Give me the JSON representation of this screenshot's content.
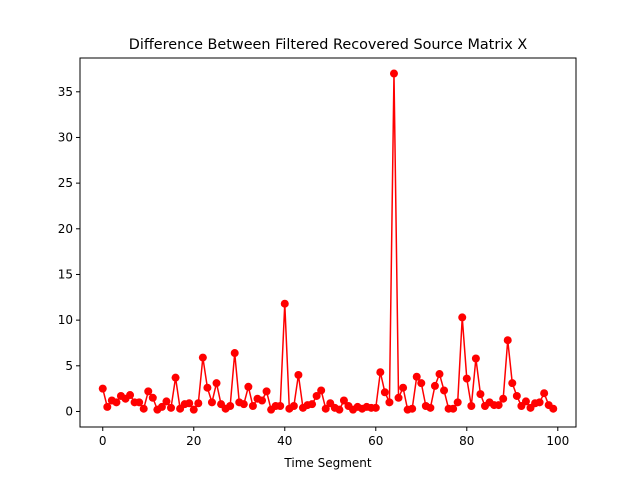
{
  "chart_data": {
    "type": "line",
    "title": "Difference Between Filtered Recovered Source Matrix X",
    "xlabel": "Time Segment",
    "ylabel": "",
    "xlim": [
      -5,
      104
    ],
    "ylim": [
      -1.7,
      38.7
    ],
    "xticks": [
      0,
      20,
      40,
      60,
      80,
      100
    ],
    "yticks": [
      0,
      5,
      10,
      15,
      20,
      25,
      30,
      35
    ],
    "grid": false,
    "legend": "none",
    "series": [
      {
        "color": "#ff0000",
        "marker": "circle",
        "x": [
          0,
          1,
          2,
          3,
          4,
          5,
          6,
          7,
          8,
          9,
          10,
          11,
          12,
          13,
          14,
          15,
          16,
          17,
          18,
          19,
          20,
          21,
          22,
          23,
          24,
          25,
          26,
          27,
          28,
          29,
          30,
          31,
          32,
          33,
          34,
          35,
          36,
          37,
          38,
          39,
          40,
          41,
          42,
          43,
          44,
          45,
          46,
          47,
          48,
          49,
          50,
          51,
          52,
          53,
          54,
          55,
          56,
          57,
          58,
          59,
          60,
          61,
          62,
          63,
          64,
          65,
          66,
          67,
          68,
          69,
          70,
          71,
          72,
          73,
          74,
          75,
          76,
          77,
          78,
          79,
          80,
          81,
          82,
          83,
          84,
          85,
          86,
          87,
          88,
          89,
          90,
          91,
          92,
          93,
          94,
          95,
          96,
          97,
          98,
          99
        ],
        "y": [
          2.5,
          0.5,
          1.2,
          1.0,
          1.7,
          1.4,
          1.8,
          1.0,
          1.0,
          0.3,
          2.2,
          1.5,
          0.2,
          0.5,
          1.1,
          0.4,
          3.7,
          0.3,
          0.8,
          0.9,
          0.2,
          0.9,
          5.9,
          2.6,
          1.0,
          3.1,
          0.8,
          0.3,
          0.6,
          6.4,
          1.0,
          0.8,
          2.7,
          0.6,
          1.4,
          1.2,
          2.2,
          0.2,
          0.6,
          0.6,
          11.8,
          0.3,
          0.6,
          4.0,
          0.4,
          0.7,
          0.8,
          1.7,
          2.3,
          0.3,
          0.9,
          0.4,
          0.2,
          1.2,
          0.6,
          0.2,
          0.5,
          0.3,
          0.5,
          0.4,
          0.4,
          4.3,
          2.1,
          1.0,
          37.0,
          1.5,
          2.6,
          0.2,
          0.3,
          3.8,
          3.1,
          0.6,
          0.4,
          2.8,
          4.1,
          2.3,
          0.3,
          0.3,
          1.0,
          10.3,
          3.6,
          0.6,
          5.8,
          1.9,
          0.6,
          1.0,
          0.7,
          0.7,
          1.4,
          7.8,
          3.1,
          1.7,
          0.6,
          1.1,
          0.4,
          0.9,
          1.0,
          2.0,
          0.7,
          0.3
        ]
      }
    ]
  }
}
